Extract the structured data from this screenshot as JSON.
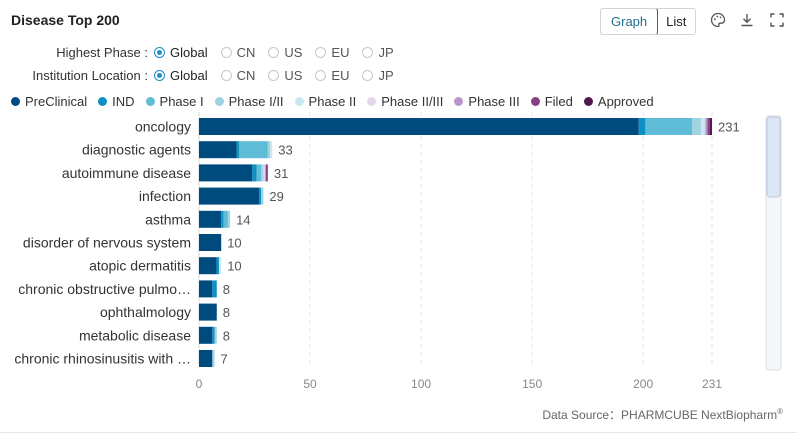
{
  "header": {
    "title": "Disease Top 200",
    "graph_label": "Graph",
    "list_label": "List",
    "palette_icon": "palette-icon",
    "download_icon": "download-icon",
    "fullscreen_icon": "fullscreen-icon"
  },
  "filters": [
    {
      "label": "Highest Phase :",
      "options": [
        "Global",
        "CN",
        "US",
        "EU",
        "JP"
      ],
      "selected": "Global"
    },
    {
      "label": "Institution Location :",
      "options": [
        "Global",
        "CN",
        "US",
        "EU",
        "JP"
      ],
      "selected": "Global"
    }
  ],
  "legend": [
    {
      "name": "PreClinical",
      "color": "#004b7d"
    },
    {
      "name": "IND",
      "color": "#0d91c4"
    },
    {
      "name": "Phase I",
      "color": "#5fbcd6"
    },
    {
      "name": "Phase I/II",
      "color": "#9fd3e1"
    },
    {
      "name": "Phase II",
      "color": "#cbe8f0"
    },
    {
      "name": "Phase II/III",
      "color": "#e3d6eb"
    },
    {
      "name": "Phase III",
      "color": "#b896c9"
    },
    {
      "name": "Filed",
      "color": "#8a3c84"
    },
    {
      "name": "Approved",
      "color": "#4d1c4c"
    }
  ],
  "chart_data": {
    "type": "bar",
    "orientation": "horizontal",
    "stacked": true,
    "categories": [
      "oncology",
      "diagnostic agents",
      "autoimmune disease",
      "infection",
      "asthma",
      "disorder of nervous system",
      "atopic dermatitis",
      "chronic obstructive pulmo…",
      "ophthalmology",
      "metabolic disease",
      "chronic rhinosinusitis with …"
    ],
    "totals": [
      231,
      33,
      31,
      29,
      14,
      10,
      10,
      8,
      8,
      8,
      7
    ],
    "series": [
      {
        "name": "PreClinical",
        "values": [
          198,
          17,
          24,
          27,
          10,
          10,
          8,
          6,
          8,
          6,
          6
        ]
      },
      {
        "name": "IND",
        "values": [
          3,
          1,
          2,
          1,
          1,
          0,
          1,
          2,
          0,
          1,
          0
        ]
      },
      {
        "name": "Phase I",
        "values": [
          21,
          13,
          2,
          0,
          2,
          0,
          0,
          0,
          0,
          0,
          0
        ]
      },
      {
        "name": "Phase I/II",
        "values": [
          4,
          1,
          1,
          1,
          1,
          0,
          0,
          0,
          0,
          1,
          1
        ]
      },
      {
        "name": "Phase II",
        "values": [
          2,
          1,
          0,
          0,
          0,
          0,
          1,
          0,
          0,
          0,
          0
        ]
      },
      {
        "name": "Phase II/III",
        "values": [
          0,
          0,
          1,
          0,
          0,
          0,
          0,
          0,
          0,
          0,
          0
        ]
      },
      {
        "name": "Phase III",
        "values": [
          1,
          0,
          0,
          0,
          0,
          0,
          0,
          0,
          0,
          0,
          0
        ]
      },
      {
        "name": "Filed",
        "values": [
          1,
          0,
          1,
          0,
          0,
          0,
          0,
          0,
          0,
          0,
          0
        ]
      },
      {
        "name": "Approved",
        "values": [
          1,
          0,
          0,
          0,
          0,
          0,
          0,
          0,
          0,
          0,
          0
        ]
      }
    ],
    "xticks": [
      0,
      50,
      100,
      150,
      200,
      231
    ],
    "xlim": [
      0,
      231
    ],
    "grid": true
  },
  "footer": {
    "source_label": "Data Source：",
    "source_value": "PHARMCUBE NextBiopharm",
    "source_mark": "®"
  }
}
